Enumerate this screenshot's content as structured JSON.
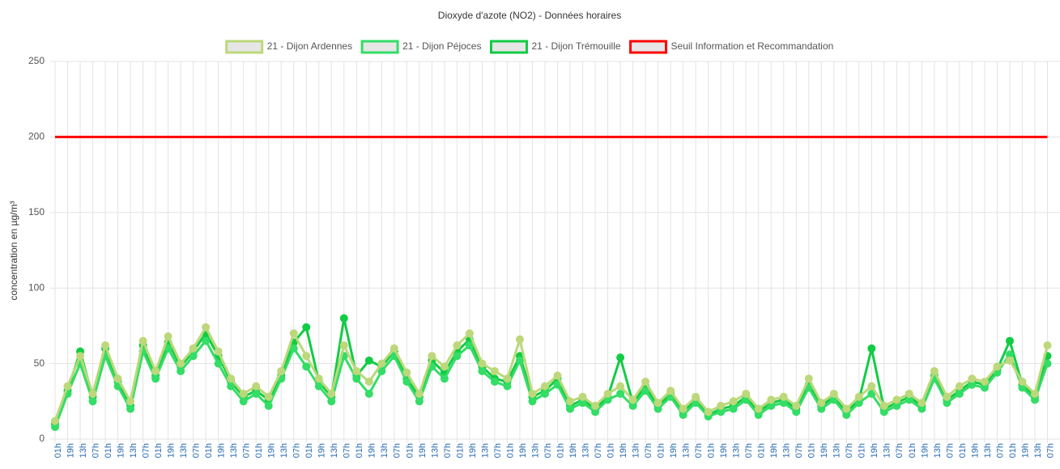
{
  "chart_data": {
    "type": "line",
    "title": "Dioxyde d'azote (NO2) - Données horaires",
    "y_label": "concentration en µg/m³",
    "ylim": [
      0,
      250
    ],
    "yticks": [
      0,
      50,
      100,
      150,
      200,
      250
    ],
    "grid": true,
    "legend": "top",
    "categories": [
      "01h",
      "19h",
      "13h",
      "07h",
      "01h",
      "19h",
      "13h",
      "07h",
      "01h",
      "19h",
      "13h",
      "07h",
      "01h",
      "19h",
      "13h",
      "07h",
      "01h",
      "19h",
      "13h",
      "07h",
      "01h",
      "19h",
      "13h",
      "07h",
      "01h",
      "19h",
      "13h",
      "07h",
      "01h",
      "19h",
      "13h",
      "07h",
      "01h",
      "19h",
      "13h",
      "07h",
      "01h",
      "19h",
      "13h",
      "07h",
      "01h",
      "19h",
      "13h",
      "07h",
      "01h",
      "19h",
      "13h",
      "07h",
      "01h",
      "19h",
      "13h",
      "07h",
      "01h",
      "19h",
      "13h",
      "07h",
      "01h",
      "19h",
      "13h",
      "07h",
      "01h",
      "19h",
      "13h",
      "07h",
      "01h",
      "19h",
      "13h",
      "07h",
      "01h",
      "19h",
      "13h",
      "07h",
      "01h",
      "19h",
      "13h",
      "07h",
      "01h",
      "19h",
      "13h",
      "07h"
    ],
    "series": [
      {
        "name": "21 - Dijon Ardennes",
        "color": "#bcd87a",
        "points": true,
        "values": [
          12,
          35,
          55,
          30,
          62,
          40,
          25,
          65,
          45,
          68,
          50,
          60,
          74,
          58,
          40,
          30,
          35,
          28,
          45,
          70,
          55,
          40,
          30,
          62,
          45,
          38,
          50,
          60,
          44,
          30,
          55,
          48,
          62,
          70,
          50,
          45,
          40,
          66,
          30,
          35,
          42,
          25,
          28,
          22,
          30,
          35,
          26,
          38,
          24,
          32,
          20,
          28,
          18,
          22,
          25,
          30,
          20,
          26,
          28,
          22,
          40,
          24,
          30,
          20,
          28,
          35,
          22,
          26,
          30,
          24,
          45,
          28,
          35,
          40,
          38,
          48,
          52,
          38,
          30,
          62
        ]
      },
      {
        "name": "21 - Dijon Péjoces",
        "color": "#33dd66",
        "points": true,
        "values": [
          8,
          30,
          50,
          25,
          55,
          35,
          20,
          58,
          40,
          60,
          45,
          55,
          65,
          50,
          35,
          25,
          30,
          22,
          40,
          60,
          48,
          35,
          25,
          55,
          40,
          30,
          45,
          55,
          38,
          25,
          48,
          40,
          55,
          62,
          45,
          38,
          35,
          52,
          25,
          30,
          36,
          20,
          24,
          18,
          26,
          30,
          22,
          32,
          20,
          28,
          16,
          24,
          15,
          18,
          20,
          26,
          16,
          22,
          24,
          18,
          34,
          20,
          26,
          16,
          24,
          30,
          18,
          22,
          26,
          20,
          40,
          24,
          30,
          36,
          34,
          44,
          56,
          34,
          26,
          50
        ]
      },
      {
        "name": "21 - Dijon Trémouille",
        "color": "#11cc44",
        "points": true,
        "values": [
          10,
          32,
          58,
          28,
          60,
          38,
          22,
          62,
          42,
          64,
          48,
          58,
          70,
          55,
          38,
          28,
          32,
          26,
          42,
          64,
          74,
          38,
          28,
          80,
          42,
          52,
          48,
          58,
          40,
          28,
          52,
          44,
          58,
          66,
          48,
          40,
          38,
          55,
          28,
          32,
          40,
          22,
          26,
          20,
          28,
          54,
          24,
          35,
          22,
          30,
          18,
          26,
          16,
          20,
          22,
          28,
          18,
          24,
          26,
          20,
          36,
          22,
          28,
          18,
          26,
          60,
          20,
          24,
          28,
          22,
          42,
          26,
          32,
          38,
          36,
          46,
          65,
          36,
          28,
          55
        ]
      },
      {
        "name": "Seuil Information et Recommandation",
        "color": "#ff0000",
        "points": false,
        "values": [
          200,
          200,
          200,
          200,
          200,
          200,
          200,
          200,
          200,
          200,
          200,
          200,
          200,
          200,
          200,
          200,
          200,
          200,
          200,
          200,
          200,
          200,
          200,
          200,
          200,
          200,
          200,
          200,
          200,
          200,
          200,
          200,
          200,
          200,
          200,
          200,
          200,
          200,
          200,
          200,
          200,
          200,
          200,
          200,
          200,
          200,
          200,
          200,
          200,
          200,
          200,
          200,
          200,
          200,
          200,
          200,
          200,
          200,
          200,
          200,
          200,
          200,
          200,
          200,
          200,
          200,
          200,
          200,
          200,
          200,
          200,
          200,
          200,
          200,
          200,
          200,
          200,
          200,
          200,
          200
        ]
      }
    ]
  }
}
